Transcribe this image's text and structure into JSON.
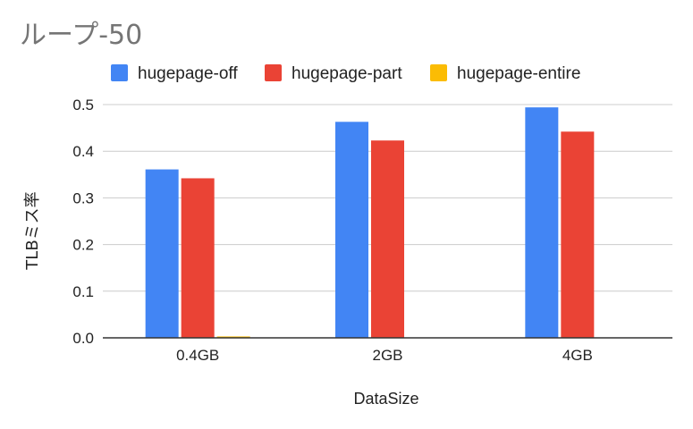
{
  "chart_data": {
    "type": "bar",
    "title": "ループ-50",
    "xlabel": "DataSize",
    "ylabel": "TLBミス率",
    "categories": [
      "0.4GB",
      "2GB",
      "4GB"
    ],
    "series": [
      {
        "name": "hugepage-off",
        "color": "#4285f4",
        "values": [
          0.361,
          0.463,
          0.494
        ]
      },
      {
        "name": "hugepage-part",
        "color": "#ea4335",
        "values": [
          0.342,
          0.423,
          0.442
        ]
      },
      {
        "name": "hugepage-entire",
        "color": "#fbbc04",
        "values": [
          0.003,
          0.0,
          0.0
        ]
      }
    ],
    "ylim": [
      0,
      0.5
    ],
    "yticks": [
      "0.0",
      "0.1",
      "0.2",
      "0.3",
      "0.4",
      "0.5"
    ],
    "grid": true,
    "legend_position": "top"
  }
}
